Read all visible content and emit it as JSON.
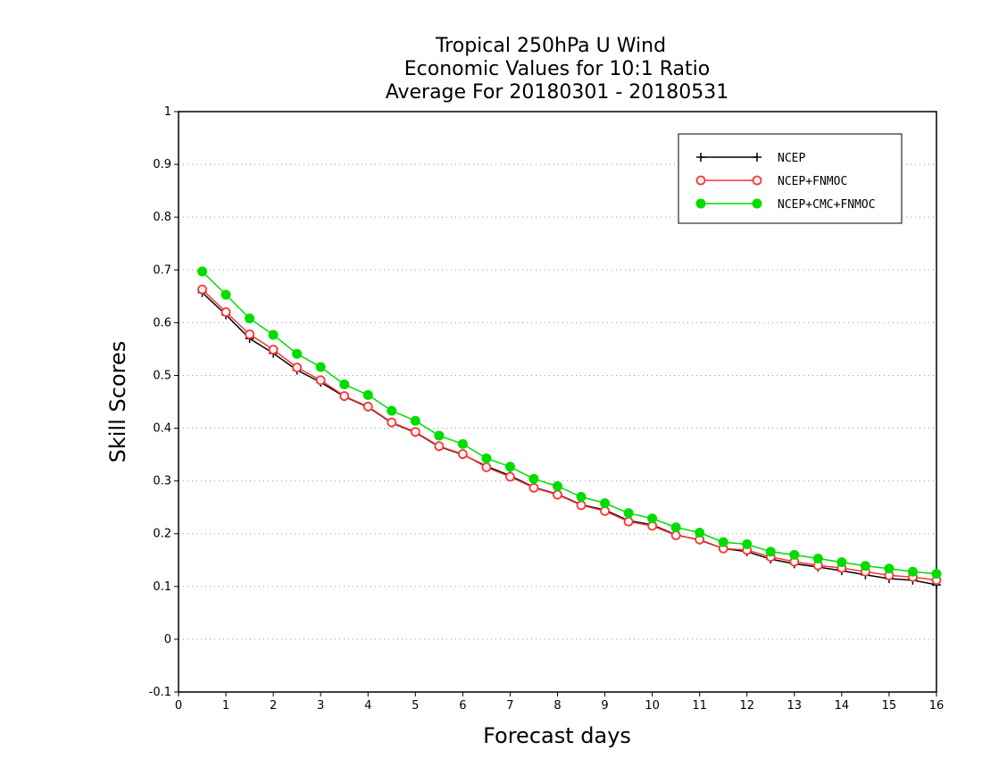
{
  "chart_data": {
    "type": "line",
    "title_lines": [
      "Tropical 250hPa U Wind",
      "Economic Values for 10:1 Ratio",
      "Average For 20180301 - 20180531"
    ],
    "xlabel": "Forecast days",
    "ylabel": "Skill Scores",
    "xlim": [
      0,
      16
    ],
    "ylim": [
      -0.1,
      1
    ],
    "xticks": [
      "0",
      "1",
      "2",
      "3",
      "4",
      "5",
      "6",
      "7",
      "8",
      "9",
      "10",
      "11",
      "12",
      "13",
      "14",
      "15",
      "16"
    ],
    "yticks": [
      "-0.1",
      "0",
      "0.1",
      "0.2",
      "0.3",
      "0.4",
      "0.5",
      "0.6",
      "0.7",
      "0.8",
      "0.9",
      "1"
    ],
    "grid": "dotted-horizontal",
    "legend_position": "top-right",
    "x": [
      0.5,
      1,
      1.5,
      2,
      2.5,
      3,
      3.5,
      4,
      4.5,
      5,
      5.5,
      6,
      6.5,
      7,
      7.5,
      8,
      8.5,
      9,
      9.5,
      10,
      10.5,
      11,
      11.5,
      12,
      12.5,
      13,
      13.5,
      14,
      14.5,
      15,
      15.5,
      16
    ],
    "series": [
      {
        "name": "NCEP",
        "color": "#000000",
        "marker": "plus",
        "values": [
          0.657,
          0.615,
          0.57,
          0.542,
          0.51,
          0.487,
          0.46,
          0.44,
          0.41,
          0.392,
          0.365,
          0.35,
          0.328,
          0.31,
          0.288,
          0.275,
          0.255,
          0.245,
          0.225,
          0.217,
          0.198,
          0.188,
          0.172,
          0.166,
          0.152,
          0.143,
          0.137,
          0.13,
          0.122,
          0.115,
          0.112,
          0.103
        ]
      },
      {
        "name": "NCEP+FNMOC",
        "color": "#ff3333",
        "marker": "open-circle",
        "values": [
          0.663,
          0.62,
          0.578,
          0.549,
          0.515,
          0.491,
          0.461,
          0.441,
          0.411,
          0.393,
          0.366,
          0.351,
          0.326,
          0.308,
          0.287,
          0.274,
          0.254,
          0.243,
          0.223,
          0.215,
          0.197,
          0.189,
          0.172,
          0.169,
          0.156,
          0.147,
          0.14,
          0.135,
          0.128,
          0.121,
          0.118,
          0.112
        ]
      },
      {
        "name": "NCEP+CMC+FNMOC",
        "color": "#00dd00",
        "marker": "filled-circle",
        "values": [
          0.697,
          0.653,
          0.608,
          0.577,
          0.541,
          0.516,
          0.483,
          0.463,
          0.433,
          0.414,
          0.386,
          0.37,
          0.343,
          0.327,
          0.304,
          0.29,
          0.27,
          0.258,
          0.239,
          0.229,
          0.212,
          0.202,
          0.184,
          0.18,
          0.166,
          0.16,
          0.153,
          0.146,
          0.139,
          0.134,
          0.128,
          0.124
        ]
      }
    ]
  }
}
